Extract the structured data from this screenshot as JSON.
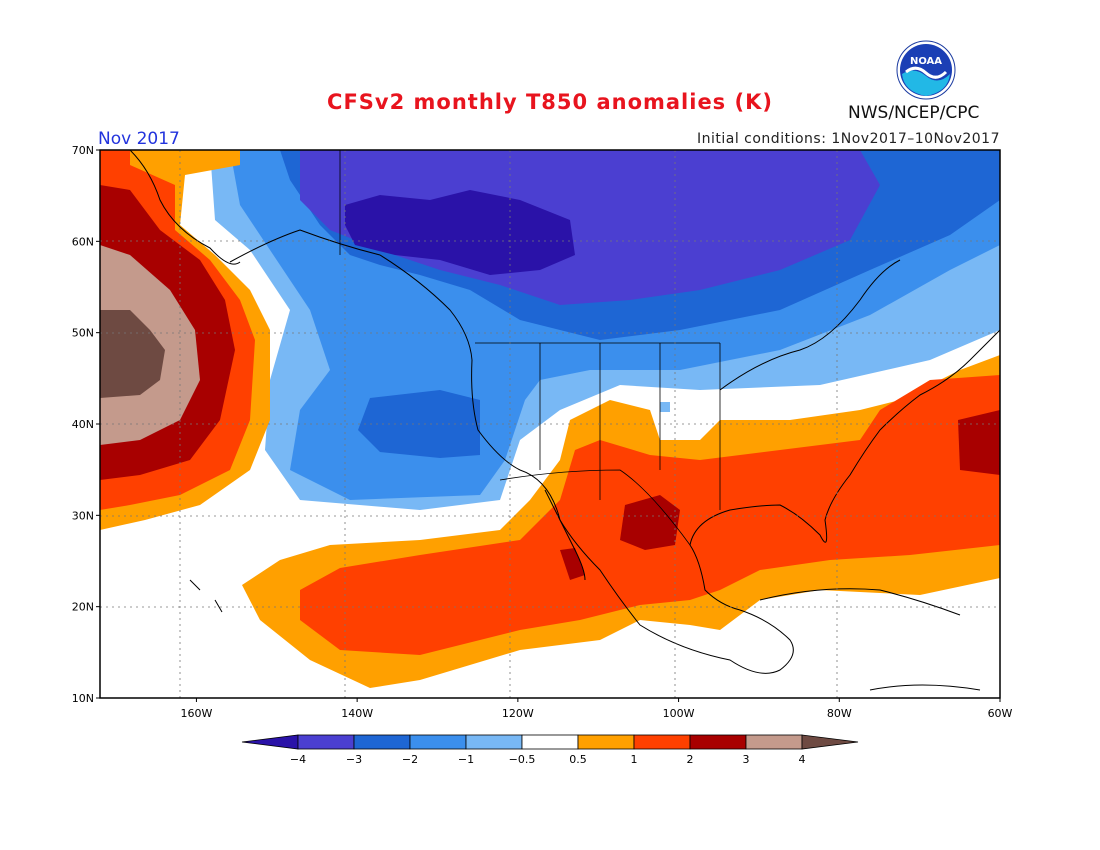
{
  "title": "CFSv2 monthly T850 anomalies (K)",
  "period": "Nov 2017",
  "initial_conditions": "Initial conditions: 1Nov2017–10Nov2017",
  "agency": "NWS/NCEP/CPC",
  "logo": {
    "text": "NOAA",
    "icon": "noaa-logo"
  },
  "map": {
    "lon_range": [
      -172,
      -60
    ],
    "lat_range": [
      10,
      70
    ],
    "lat_ticks": [
      {
        "value": 70,
        "label": "70N"
      },
      {
        "value": 60,
        "label": "60N"
      },
      {
        "value": 50,
        "label": "50N"
      },
      {
        "value": 40,
        "label": "40N"
      },
      {
        "value": 30,
        "label": "30N"
      },
      {
        "value": 20,
        "label": "20N"
      },
      {
        "value": 10,
        "label": "10N"
      }
    ],
    "lon_ticks": [
      {
        "value": -160,
        "label": "160W"
      },
      {
        "value": -140,
        "label": "140W"
      },
      {
        "value": -120,
        "label": "120W"
      },
      {
        "value": -100,
        "label": "100W"
      },
      {
        "value": -80,
        "label": "80W"
      },
      {
        "value": -60,
        "label": "60W"
      }
    ],
    "gridlines": "dotted"
  },
  "colorbar": {
    "labels": [
      "−4",
      "−3",
      "−2",
      "−1",
      "−0.5",
      "0.5",
      "1",
      "2",
      "3",
      "4"
    ],
    "colors": [
      "#2a12a8",
      "#4b3fd1",
      "#1e66d4",
      "#3b8fed",
      "#78b8f5",
      "#ffffff",
      "#ffa000",
      "#ff4000",
      "#a80000",
      "#c49a8c",
      "#6e4a42"
    ]
  }
}
